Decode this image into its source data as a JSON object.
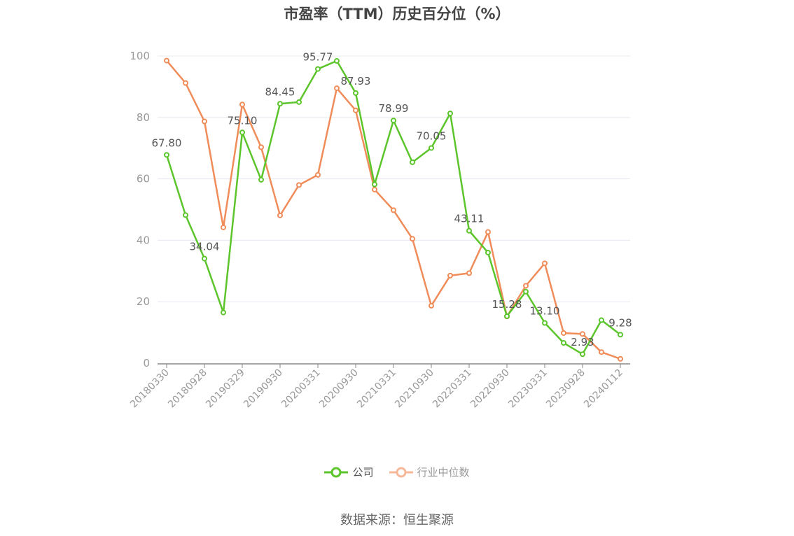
{
  "title": "市盈率（TTM）历史百分位（%）",
  "source": "数据来源：恒生聚源",
  "colors": {
    "company": "#5cc52c",
    "industry": "#f08c5a",
    "grid": "#e5e8ef",
    "axis": "#888888"
  },
  "chart_data": {
    "type": "line",
    "ylim": [
      0,
      100
    ],
    "yticks": [
      0,
      20,
      40,
      60,
      80,
      100
    ],
    "x": [
      "20180330",
      "20180629",
      "20180928",
      "20181228",
      "20190329",
      "20190628",
      "20190930",
      "20191231",
      "20200331",
      "20200630",
      "20200930",
      "20201231",
      "20210331",
      "20210630",
      "20210930",
      "20211231",
      "20220331",
      "20220630",
      "20220930",
      "20221230",
      "20230331",
      "20230630",
      "20230928",
      "20231229",
      "20240112"
    ],
    "xticks": [
      "20180330",
      "20180928",
      "20190329",
      "20190930",
      "20200331",
      "20200930",
      "20210331",
      "20210930",
      "20220331",
      "20220930",
      "20230331",
      "20230928",
      "20240112"
    ],
    "series": [
      {
        "name": "公司",
        "values": [
          67.8,
          48.2,
          34.04,
          16.5,
          75.1,
          59.7,
          84.45,
          85.0,
          95.77,
          98.4,
          87.93,
          58.2,
          78.99,
          65.4,
          70.05,
          81.3,
          43.11,
          36.0,
          15.28,
          23.3,
          13.1,
          6.6,
          2.93,
          14.0,
          9.28
        ]
      },
      {
        "name": "行业中位数",
        "values": [
          98.5,
          91.2,
          78.7,
          44.2,
          84.2,
          70.3,
          48.1,
          58.0,
          61.3,
          89.5,
          82.3,
          56.5,
          49.8,
          40.5,
          18.7,
          28.5,
          29.3,
          42.7,
          15.2,
          25.2,
          32.5,
          9.8,
          9.5,
          3.6,
          1.4
        ]
      }
    ],
    "data_labels": [
      {
        "index": 0,
        "text": "67.80"
      },
      {
        "index": 2,
        "text": "34.04"
      },
      {
        "index": 4,
        "text": "75.10"
      },
      {
        "index": 6,
        "text": "84.45"
      },
      {
        "index": 8,
        "text": "95.77"
      },
      {
        "index": 10,
        "text": "87.93"
      },
      {
        "index": 12,
        "text": "78.99"
      },
      {
        "index": 14,
        "text": "70.05"
      },
      {
        "index": 16,
        "text": "43.11"
      },
      {
        "index": 18,
        "text": "15.28"
      },
      {
        "index": 20,
        "text": "13.10"
      },
      {
        "index": 22,
        "text": "2.93"
      },
      {
        "index": 24,
        "text": "9.28"
      }
    ],
    "legend": [
      "公司",
      "行业中位数"
    ]
  }
}
